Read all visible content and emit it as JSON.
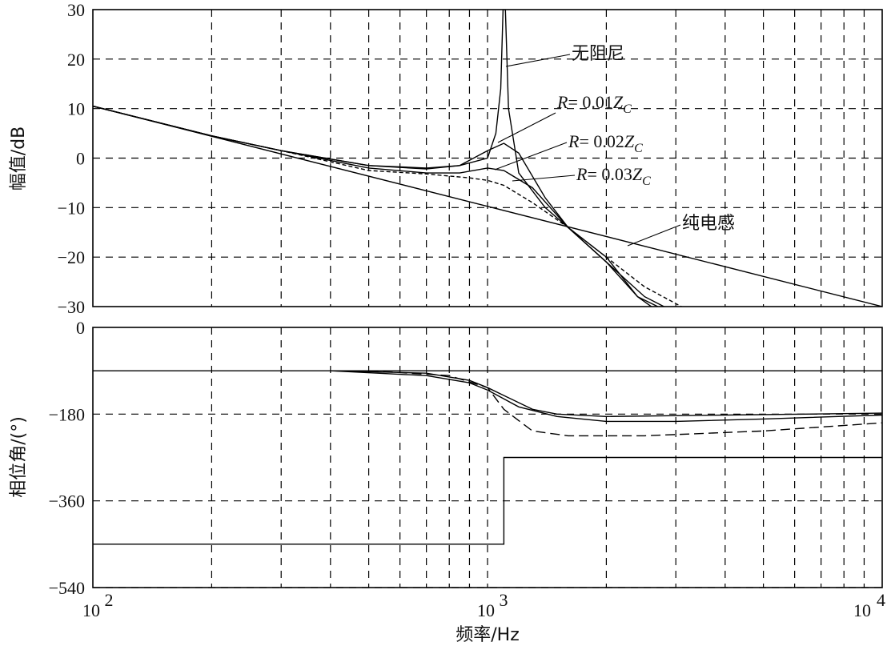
{
  "chart_data": [
    {
      "type": "line",
      "ylabel": "幅值/dB",
      "x_scale": "log",
      "xlim": [
        100,
        10000
      ],
      "ylim": [
        -30,
        30
      ],
      "yticks": [
        "30",
        "20",
        "10",
        "0",
        "−10",
        "−20",
        "−30"
      ],
      "grid": true,
      "series": [
        {
          "name": "无阻尼",
          "style": "solid",
          "points": [
            [
              100,
              10.5
            ],
            [
              200,
              4.5
            ],
            [
              300,
              1.5
            ],
            [
              500,
              -1.5
            ],
            [
              700,
              -2
            ],
            [
              850,
              -1.5
            ],
            [
              1000,
              0
            ],
            [
              1050,
              5
            ],
            [
              1080,
              14
            ],
            [
              1095,
              30
            ],
            [
              1110,
              30
            ],
            [
              1130,
              10
            ],
            [
              1200,
              -3
            ],
            [
              1400,
              -10
            ],
            [
              1600,
              -14
            ],
            [
              2000,
              -20
            ],
            [
              2400,
              -28
            ],
            [
              2600,
              -30
            ]
          ]
        },
        {
          "name": "R= 0.01Z_C",
          "style": "solid",
          "points": [
            [
              100,
              10.5
            ],
            [
              200,
              4.5
            ],
            [
              300,
              1.5
            ],
            [
              500,
              -1.5
            ],
            [
              700,
              -2.2
            ],
            [
              850,
              -1.5
            ],
            [
              1000,
              1.5
            ],
            [
              1100,
              3
            ],
            [
              1200,
              1
            ],
            [
              1400,
              -8
            ],
            [
              1600,
              -14
            ],
            [
              2000,
              -21
            ],
            [
              2400,
              -28
            ],
            [
              2700,
              -30
            ]
          ]
        },
        {
          "name": "R= 0.02Z_C",
          "style": "solid",
          "points": [
            [
              100,
              10.5
            ],
            [
              200,
              4.5
            ],
            [
              300,
              1.5
            ],
            [
              500,
              -2
            ],
            [
              700,
              -3
            ],
            [
              850,
              -3
            ],
            [
              1000,
              -2
            ],
            [
              1100,
              -2.5
            ],
            [
              1300,
              -6
            ],
            [
              1600,
              -14
            ],
            [
              2000,
              -21
            ],
            [
              2500,
              -28
            ],
            [
              2800,
              -30
            ]
          ]
        },
        {
          "name": "R= 0.03Z_C",
          "style": "dotted",
          "points": [
            [
              100,
              10.5
            ],
            [
              200,
              4.5
            ],
            [
              300,
              1.5
            ],
            [
              500,
              -2.5
            ],
            [
              700,
              -3.2
            ],
            [
              900,
              -4
            ],
            [
              1000,
              -4.5
            ],
            [
              1100,
              -5.5
            ],
            [
              1300,
              -9
            ],
            [
              1600,
              -14
            ],
            [
              2000,
              -20
            ],
            [
              2500,
              -26
            ],
            [
              3100,
              -30
            ]
          ]
        },
        {
          "name": "纯电感",
          "style": "solid",
          "points": [
            [
              100,
              10.5
            ],
            [
              10000,
              -30
            ]
          ]
        }
      ],
      "annotations": [
        "无阻尼",
        "R= 0.01Z_C",
        "R= 0.02Z_C",
        "R= 0.03Z_C",
        "纯电感"
      ]
    },
    {
      "type": "line",
      "xlabel": "频率/Hz",
      "ylabel": "相位角/(°)",
      "x_scale": "log",
      "xlim": [
        100,
        10000
      ],
      "ylim": [
        -540,
        0
      ],
      "xticks": [
        "10",
        "10",
        "10"
      ],
      "xtick_exponents": [
        "2",
        "3",
        "4"
      ],
      "yticks": [
        "0",
        "−180",
        "−360",
        "−540"
      ],
      "grid": true,
      "series": [
        {
          "style": "solid",
          "points": [
            [
              100,
              -90
            ],
            [
              10000,
              -90
            ]
          ]
        },
        {
          "style": "solid",
          "points": [
            [
              100,
              -450
            ],
            [
              1100,
              -450
            ],
            [
              1100,
              -270
            ],
            [
              10000,
              -270
            ]
          ]
        },
        {
          "style": "solid",
          "points": [
            [
              400,
              -90
            ],
            [
              700,
              -100
            ],
            [
              900,
              -115
            ],
            [
              1000,
              -130
            ],
            [
              1200,
              -165
            ],
            [
              1500,
              -185
            ],
            [
              2000,
              -195
            ],
            [
              3000,
              -195
            ],
            [
              5000,
              -190
            ],
            [
              10000,
              -182
            ]
          ]
        },
        {
          "style": "solid",
          "points": [
            [
              400,
              -90
            ],
            [
              700,
              -95
            ],
            [
              900,
              -110
            ],
            [
              1000,
              -125
            ],
            [
              1300,
              -170
            ],
            [
              1500,
              -180
            ],
            [
              2000,
              -185
            ],
            [
              4000,
              -182
            ],
            [
              10000,
              -178
            ]
          ]
        },
        {
          "style": "dashed",
          "points": [
            [
              500,
              -90
            ],
            [
              800,
              -100
            ],
            [
              1000,
              -125
            ],
            [
              1100,
              -170
            ],
            [
              1300,
              -215
            ],
            [
              1600,
              -225
            ],
            [
              2500,
              -225
            ],
            [
              5000,
              -215
            ],
            [
              10000,
              -198
            ]
          ]
        }
      ]
    }
  ]
}
